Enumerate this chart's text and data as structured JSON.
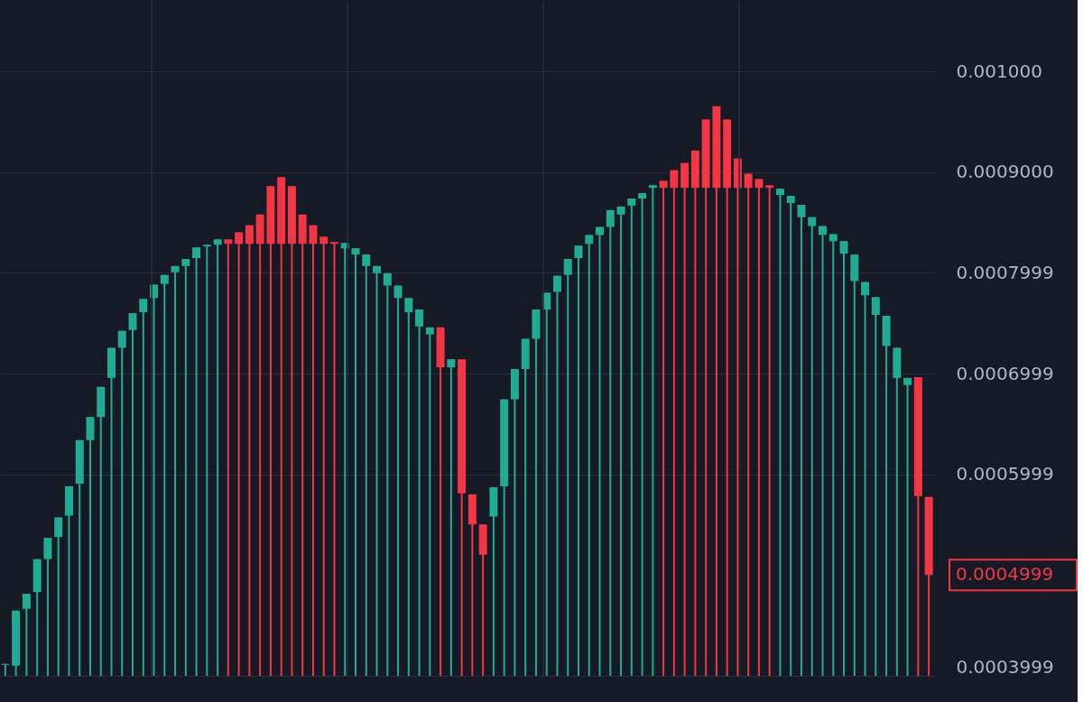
{
  "chart_data": {
    "type": "candlestick",
    "categories": [
      null,
      null,
      null,
      null,
      null,
      null,
      null,
      null,
      null,
      null,
      null,
      null,
      null,
      null,
      null,
      null,
      null,
      null,
      null,
      null,
      null,
      null,
      null,
      null,
      null,
      null,
      null,
      null,
      null,
      null,
      null,
      null,
      null,
      null,
      null,
      null,
      null,
      null,
      null,
      null,
      null,
      null,
      null,
      null,
      null,
      null,
      null,
      null,
      null,
      null,
      null,
      null,
      null,
      null,
      null,
      null,
      null,
      null,
      null,
      null,
      null,
      null,
      null,
      null,
      null,
      null,
      null,
      null,
      null,
      null,
      null,
      null,
      null,
      null,
      null,
      null,
      null,
      null,
      null,
      null,
      null,
      null,
      null,
      null,
      null,
      null,
      null,
      null
    ],
    "ohlc": [
      [
        0.0004108,
        0.0004117,
        0.0004,
        0.0004117
      ],
      [
        0.00041,
        0.0004646,
        0.0004,
        0.0004646
      ],
      [
        0.0004664,
        0.0004814,
        0.0004,
        0.0004814
      ],
      [
        0.0004831,
        0.0005158,
        0.0004,
        0.0005158
      ],
      [
        0.0005158,
        0.0005369,
        0.0004,
        0.0005369
      ],
      [
        0.0005378,
        0.0005572,
        0.0004,
        0.0005572
      ],
      [
        0.000559,
        0.0005881,
        0.0004,
        0.0005881
      ],
      [
        0.0005907,
        0.0006339,
        0.0004,
        0.0006339
      ],
      [
        0.0006339,
        0.0006569,
        0.0004,
        0.0006569
      ],
      [
        0.0006569,
        0.0006868,
        0.0004,
        0.0006868
      ],
      [
        0.0006957,
        0.0007256,
        0.0004,
        0.0007256
      ],
      [
        0.0007256,
        0.0007424,
        0.0004,
        0.0007424
      ],
      [
        0.0007433,
        0.00076,
        0.0004,
        0.00076
      ],
      [
        0.0007609,
        0.0007741,
        0.0004,
        0.0007741
      ],
      [
        0.000775,
        0.0007883,
        0.0004,
        0.0007883
      ],
      [
        0.0007891,
        0.000798,
        0.0004,
        0.000798
      ],
      [
        0.0008006,
        0.0008068,
        0.0004,
        0.0008068
      ],
      [
        0.0008068,
        0.0008138,
        0.0004,
        0.0008138
      ],
      [
        0.0008147,
        0.0008253,
        0.0004,
        0.0008253
      ],
      [
        0.0008262,
        0.0008279,
        0.0004,
        0.0008279
      ],
      [
        0.0008279,
        0.0008332,
        0.0004,
        0.0008332
      ],
      [
        0.0008332,
        0.0008332,
        0.0004,
        0.0008288
      ],
      [
        0.0008403,
        0.0008403,
        0.0004,
        0.0008288
      ],
      [
        0.0008473,
        0.0008473,
        0.0004,
        0.0008288
      ],
      [
        0.0008579,
        0.0008579,
        0.0004,
        0.0008288
      ],
      [
        0.0008861,
        0.0008861,
        0.0004,
        0.0008288
      ],
      [
        0.000895,
        0.000895,
        0.0004,
        0.0008288
      ],
      [
        0.0008861,
        0.0008861,
        0.0004,
        0.0008288
      ],
      [
        0.0008579,
        0.0008579,
        0.0004,
        0.0008288
      ],
      [
        0.0008473,
        0.0008473,
        0.0004,
        0.0008288
      ],
      [
        0.0008359,
        0.0008359,
        0.0004,
        0.0008288
      ],
      [
        0.0008306,
        0.0008306,
        0.0004,
        0.0008288
      ],
      [
        0.0008244,
        0.0008297,
        0.0004,
        0.0008297
      ],
      [
        0.0008182,
        0.0008244,
        0.0004,
        0.0008244
      ],
      [
        0.0008068,
        0.0008182,
        0.0004,
        0.0008182
      ],
      [
        0.0007997,
        0.0008068,
        0.0004,
        0.0008068
      ],
      [
        0.0007874,
        0.0007997,
        0.0004,
        0.0007997
      ],
      [
        0.000775,
        0.0007874,
        0.0004,
        0.0007874
      ],
      [
        0.0007609,
        0.000775,
        0.0004,
        0.000775
      ],
      [
        0.0007468,
        0.0007636,
        0.0004,
        0.0007636
      ],
      [
        0.0007389,
        0.0007459,
        0.0004,
        0.0007459
      ],
      [
        0.0007459,
        0.0007459,
        0.0004,
        0.0007062
      ],
      [
        0.0007062,
        0.0007142,
        0.0004,
        0.0007142
      ],
      [
        0.0007142,
        0.0007142,
        0.0004,
        0.000581
      ],
      [
        0.0005801,
        0.0005801,
        0.0004,
        0.0005502
      ],
      [
        0.0005502,
        0.0005502,
        0.0004,
        0.0005202
      ],
      [
        0.0005581,
        0.0005872,
        0.0004,
        0.0005872
      ],
      [
        0.0005881,
        0.0006745,
        0.0004,
        0.0006745
      ],
      [
        0.0006745,
        0.0007045,
        0.0004,
        0.0007045
      ],
      [
        0.0007045,
        0.0007345,
        0.0004,
        0.0007345
      ],
      [
        0.0007345,
        0.0007636,
        0.0004,
        0.0007636
      ],
      [
        0.0007636,
        0.0007803,
        0.0004,
        0.0007803
      ],
      [
        0.0007812,
        0.0007971,
        0.0004,
        0.0007971
      ],
      [
        0.000798,
        0.0008138,
        0.0004,
        0.0008138
      ],
      [
        0.0008147,
        0.0008271,
        0.0004,
        0.0008271
      ],
      [
        0.0008288,
        0.0008376,
        0.0004,
        0.0008376
      ],
      [
        0.0008376,
        0.0008456,
        0.0004,
        0.0008456
      ],
      [
        0.0008456,
        0.0008623,
        0.0004,
        0.0008623
      ],
      [
        0.0008579,
        0.0008659,
        0.0004,
        0.0008659
      ],
      [
        0.0008667,
        0.0008738,
        0.0004,
        0.0008738
      ],
      [
        0.0008738,
        0.0008791,
        0.0004,
        0.0008791
      ],
      [
        0.0008844,
        0.000887,
        0.0004,
        0.000887
      ],
      [
        0.0008914,
        0.0008914,
        0.0004,
        0.0008844
      ],
      [
        0.000902,
        0.000902,
        0.0004,
        0.0008844
      ],
      [
        0.0009091,
        0.0009091,
        0.0004,
        0.0008844
      ],
      [
        0.0009214,
        0.0009214,
        0.0004,
        0.0008844
      ],
      [
        0.0009523,
        0.0009523,
        0.0004,
        0.0008844
      ],
      [
        0.0009655,
        0.0009655,
        0.0004,
        0.0008844
      ],
      [
        0.0009523,
        0.0009523,
        0.0004,
        0.0008844
      ],
      [
        0.0009135,
        0.0009135,
        0.0004,
        0.0008844
      ],
      [
        0.0008985,
        0.0008985,
        0.0004,
        0.0008844
      ],
      [
        0.0008932,
        0.0008932,
        0.0004,
        0.0008844
      ],
      [
        0.000887,
        0.000887,
        0.0004,
        0.0008844
      ],
      [
        0.0008773,
        0.0008835,
        0.0004,
        0.0008835
      ],
      [
        0.0008694,
        0.0008764,
        0.0004,
        0.0008764
      ],
      [
        0.0008553,
        0.0008676,
        0.0004,
        0.0008676
      ],
      [
        0.0008465,
        0.0008553,
        0.0004,
        0.0008553
      ],
      [
        0.0008376,
        0.0008465,
        0.0004,
        0.0008465
      ],
      [
        0.0008315,
        0.0008385,
        0.0004,
        0.0008385
      ],
      [
        0.0008191,
        0.0008315,
        0.0004,
        0.0008315
      ],
      [
        0.0007918,
        0.0008182,
        0.0004,
        0.0008182
      ],
      [
        0.0007777,
        0.0007909,
        0.0004,
        0.0007909
      ],
      [
        0.0007583,
        0.0007759,
        0.0004,
        0.0007759
      ],
      [
        0.0007274,
        0.0007574,
        0.0004,
        0.0007574
      ],
      [
        0.0006957,
        0.0007256,
        0.0004,
        0.0007256
      ],
      [
        0.0006886,
        0.0006957,
        0.0004,
        0.0006957
      ],
      [
        0.0006965,
        0.0006965,
        0.0004,
        0.0005784
      ],
      [
        0.0005775,
        0.0005775,
        0.0004,
        0.0004999
      ]
    ],
    "colors": [
      "#22ab94",
      "#22ab94",
      "#22ab94",
      "#22ab94",
      "#22ab94",
      "#22ab94",
      "#22ab94",
      "#22ab94",
      "#22ab94",
      "#22ab94",
      "#22ab94",
      "#22ab94",
      "#22ab94",
      "#22ab94",
      "#22ab94",
      "#22ab94",
      "#22ab94",
      "#22ab94",
      "#22ab94",
      "#22ab94",
      "#22ab94",
      "#f23645",
      "#f23645",
      "#f23645",
      "#f23645",
      "#f23645",
      "#f23645",
      "#f23645",
      "#f23645",
      "#f23645",
      "#f23645",
      "#f23645",
      "#22ab94",
      "#22ab94",
      "#22ab94",
      "#22ab94",
      "#22ab94",
      "#22ab94",
      "#22ab94",
      "#22ab94",
      "#22ab94",
      "#f23645",
      "#22ab94",
      "#f23645",
      "#f23645",
      "#f23645",
      "#22ab94",
      "#22ab94",
      "#22ab94",
      "#22ab94",
      "#22ab94",
      "#22ab94",
      "#22ab94",
      "#22ab94",
      "#22ab94",
      "#22ab94",
      "#22ab94",
      "#22ab94",
      "#22ab94",
      "#22ab94",
      "#22ab94",
      "#22ab94",
      "#f23645",
      "#f23645",
      "#f23645",
      "#f23645",
      "#f23645",
      "#f23645",
      "#f23645",
      "#f23645",
      "#f23645",
      "#f23645",
      "#f23645",
      "#22ab94",
      "#22ab94",
      "#22ab94",
      "#22ab94",
      "#22ab94",
      "#22ab94",
      "#22ab94",
      "#22ab94",
      "#22ab94",
      "#22ab94",
      "#22ab94",
      "#22ab94",
      "#22ab94",
      "#f23645",
      "#f23645"
    ],
    "ylim": [
      0.0003999,
      0.00107
    ],
    "yticks": [
      0.0003999,
      0.0005999,
      0.0006999,
      0.0007999,
      {
        "value": 0.0009,
        "label": "0.0009000"
      },
      {
        "value": 0.001,
        "label": "0.001000"
      }
    ],
    "annotations": [
      "0.0004999"
    ],
    "grid": true,
    "tick_labels": "y"
  }
}
